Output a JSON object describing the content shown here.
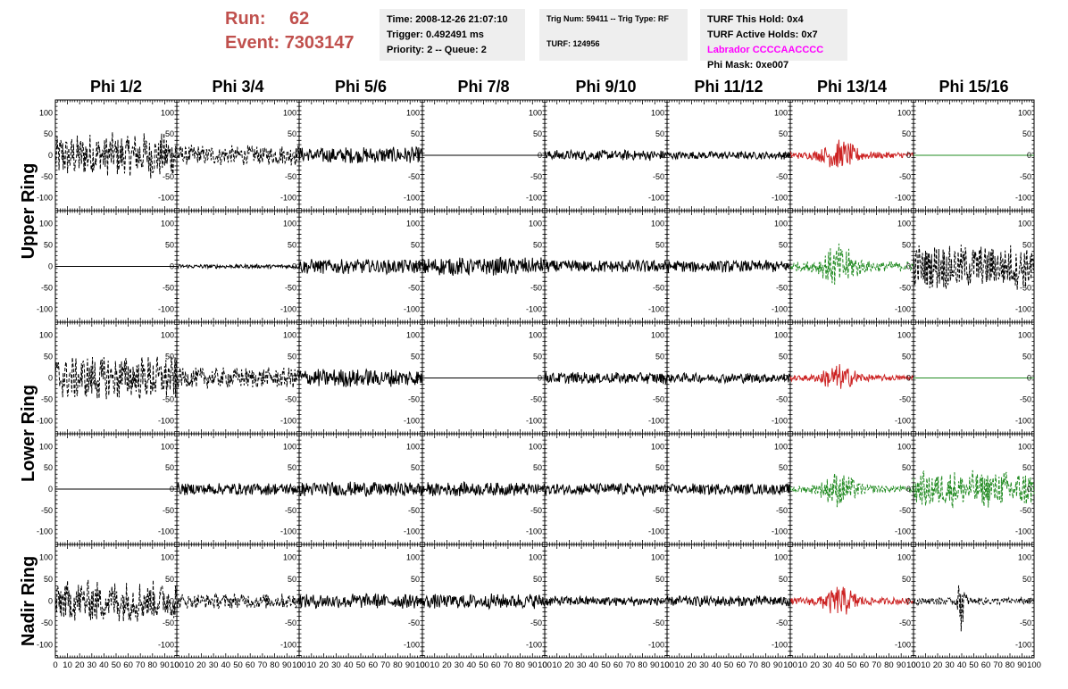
{
  "header": {
    "run_label": "Run:",
    "run_value": "62",
    "event_label": "Event:",
    "event_value": "7303147",
    "time": "Time: 2008-12-26 21:07:10",
    "trigger": "Trigger: 0.492491 ms",
    "priority": "Priority: 2 -- Queue: 2",
    "trig_num": "Trig Num: 59411 -- Trig Type: RF",
    "turf": "TURF: 124956",
    "turf_this_hold": "TURF This Hold: 0x4",
    "turf_active_holds": "TURF Active Holds: 0x7",
    "labrador": "Labrador CCCCAACCCC",
    "phi_mask": "Phi Mask: 0xe007"
  },
  "colors": {
    "header_red": "#c0504d",
    "labrador_magenta": "#ff00ff",
    "trace_black": "#000000",
    "trace_red": "#cc2222",
    "trace_green": "#228b22",
    "info_box_bg": "#eeeeee"
  },
  "chart_data": {
    "type": "line",
    "columns": [
      "Phi 1/2",
      "Phi 3/4",
      "Phi 5/6",
      "Phi 7/8",
      "Phi 9/10",
      "Phi 11/12",
      "Phi 13/14",
      "Phi 15/16"
    ],
    "row_labels": [
      "Upper Ring",
      "Lower Ring",
      "Nadir Ring"
    ],
    "xlim": [
      0,
      100
    ],
    "ylim": [
      -130,
      130
    ],
    "xticks": [
      "0",
      "10",
      "20",
      "30",
      "40",
      "50",
      "60",
      "70",
      "80",
      "90",
      "100"
    ],
    "yticks": [
      {
        "v": 100,
        "label": "100"
      },
      {
        "v": 50,
        "label": "50"
      },
      {
        "v": 0,
        "label": "0"
      },
      {
        "v": -50,
        "label": "-50"
      },
      {
        "v": -100,
        "label": "-100"
      }
    ],
    "panel_rows": [
      [
        {
          "amp": 55,
          "style": "dashed",
          "color": "black",
          "env": "flat"
        },
        {
          "amp": 25,
          "style": "dashed",
          "color": "black",
          "env": "flat"
        },
        {
          "amp": 20,
          "style": "solid",
          "color": "black",
          "env": "flat"
        },
        {
          "amp": 0,
          "style": "solid",
          "color": "black",
          "env": "flat"
        },
        {
          "amp": 13,
          "style": "solid",
          "color": "black",
          "env": "flat"
        },
        {
          "amp": 10,
          "style": "solid",
          "color": "black",
          "env": "flat"
        },
        {
          "amp": 28,
          "style": "solid",
          "color": "red",
          "env": "burst"
        },
        {
          "amp": 0,
          "style": "solid",
          "color": "green",
          "env": "flat"
        }
      ],
      [
        {
          "amp": 0,
          "style": "solid",
          "color": "black",
          "env": "flat"
        },
        {
          "amp": 5,
          "style": "solid",
          "color": "black",
          "env": "flat"
        },
        {
          "amp": 18,
          "style": "solid",
          "color": "black",
          "env": "flat"
        },
        {
          "amp": 22,
          "style": "solid",
          "color": "black",
          "env": "flat"
        },
        {
          "amp": 16,
          "style": "solid",
          "color": "black",
          "env": "flat"
        },
        {
          "amp": 15,
          "style": "solid",
          "color": "black",
          "env": "flat"
        },
        {
          "amp": 40,
          "style": "dashed",
          "color": "green",
          "env": "burst"
        },
        {
          "amp": 55,
          "style": "dashed",
          "color": "black",
          "env": "flat"
        }
      ],
      [
        {
          "amp": 55,
          "style": "dashed",
          "color": "black",
          "env": "flat"
        },
        {
          "amp": 25,
          "style": "dashed",
          "color": "black",
          "env": "flat"
        },
        {
          "amp": 22,
          "style": "solid",
          "color": "black",
          "env": "flat"
        },
        {
          "amp": 0,
          "style": "solid",
          "color": "black",
          "env": "flat"
        },
        {
          "amp": 14,
          "style": "solid",
          "color": "black",
          "env": "flat"
        },
        {
          "amp": 12,
          "style": "solid",
          "color": "black",
          "env": "flat"
        },
        {
          "amp": 25,
          "style": "solid",
          "color": "red",
          "env": "burst"
        },
        {
          "amp": 0,
          "style": "solid",
          "color": "green",
          "env": "flat"
        }
      ],
      [
        {
          "amp": 0,
          "style": "solid",
          "color": "black",
          "env": "flat"
        },
        {
          "amp": 15,
          "style": "solid",
          "color": "black",
          "env": "flat"
        },
        {
          "amp": 18,
          "style": "solid",
          "color": "black",
          "env": "flat"
        },
        {
          "amp": 17,
          "style": "solid",
          "color": "black",
          "env": "flat"
        },
        {
          "amp": 15,
          "style": "solid",
          "color": "black",
          "env": "flat"
        },
        {
          "amp": 14,
          "style": "solid",
          "color": "black",
          "env": "flat"
        },
        {
          "amp": 32,
          "style": "dashed",
          "color": "green",
          "env": "burst"
        },
        {
          "amp": 45,
          "style": "dashed",
          "color": "green",
          "env": "flat"
        }
      ],
      [
        {
          "amp": 50,
          "style": "dashed",
          "color": "black",
          "env": "flat"
        },
        {
          "amp": 18,
          "style": "dashed",
          "color": "black",
          "env": "flat"
        },
        {
          "amp": 18,
          "style": "solid",
          "color": "black",
          "env": "flat"
        },
        {
          "amp": 18,
          "style": "solid",
          "color": "black",
          "env": "flat"
        },
        {
          "amp": 12,
          "style": "solid",
          "color": "black",
          "env": "flat"
        },
        {
          "amp": 13,
          "style": "solid",
          "color": "black",
          "env": "flat"
        },
        {
          "amp": 28,
          "style": "solid",
          "color": "red",
          "env": "burst"
        },
        {
          "amp": 25,
          "style": "dashed",
          "color": "black",
          "env": "spike"
        }
      ]
    ]
  }
}
